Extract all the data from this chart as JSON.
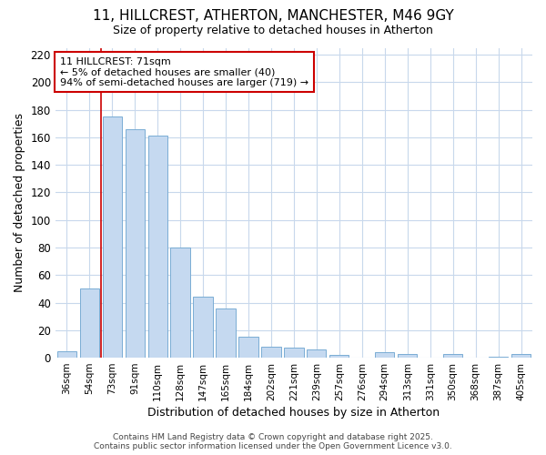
{
  "title": "11, HILLCREST, ATHERTON, MANCHESTER, M46 9GY",
  "subtitle": "Size of property relative to detached houses in Atherton",
  "xlabel": "Distribution of detached houses by size in Atherton",
  "ylabel": "Number of detached properties",
  "categories": [
    "36sqm",
    "54sqm",
    "73sqm",
    "91sqm",
    "110sqm",
    "128sqm",
    "147sqm",
    "165sqm",
    "184sqm",
    "202sqm",
    "221sqm",
    "239sqm",
    "257sqm",
    "276sqm",
    "294sqm",
    "313sqm",
    "331sqm",
    "350sqm",
    "368sqm",
    "387sqm",
    "405sqm"
  ],
  "values": [
    5,
    50,
    175,
    166,
    161,
    80,
    44,
    36,
    15,
    8,
    7,
    6,
    2,
    0,
    4,
    3,
    0,
    3,
    0,
    1,
    3
  ],
  "bar_color": "#c5d9f0",
  "bar_edge_color": "#7aadd4",
  "vline_x": 1.5,
  "vline_color": "#cc0000",
  "annotation_title": "11 HILLCREST: 71sqm",
  "annotation_line1": "← 5% of detached houses are smaller (40)",
  "annotation_line2": "94% of semi-detached houses are larger (719) →",
  "annotation_box_color": "white",
  "annotation_box_edge": "#cc0000",
  "ylim": [
    0,
    225
  ],
  "yticks": [
    0,
    20,
    40,
    60,
    80,
    100,
    120,
    140,
    160,
    180,
    200,
    220
  ],
  "footer": "Contains HM Land Registry data © Crown copyright and database right 2025.\nContains public sector information licensed under the Open Government Licence v3.0.",
  "bg_color": "#ffffff",
  "plot_bg_color": "#ffffff",
  "grid_color": "#c8d8ec"
}
